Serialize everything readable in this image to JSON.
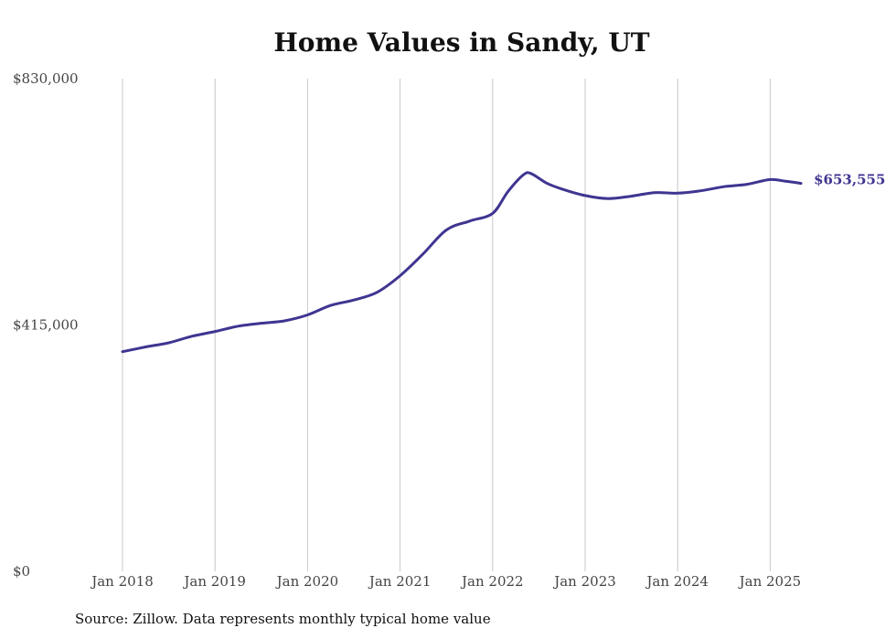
{
  "chart_data": {
    "type": "line",
    "title": "Home Values in Sandy, UT",
    "xlabel": "",
    "ylabel": "",
    "ylim": [
      0,
      830000
    ],
    "y_ticks": [
      "$0",
      "$415,000",
      "$830,000"
    ],
    "y_tick_values": [
      0,
      415000,
      830000
    ],
    "x_ticks": [
      "Jan 2018",
      "Jan 2019",
      "Jan 2020",
      "Jan 2021",
      "Jan 2022",
      "Jan 2023",
      "Jan 2024",
      "Jan 2025"
    ],
    "grid": "vertical",
    "line_color": "#3f3591",
    "end_label": "$653,555",
    "series": [
      {
        "values": [
          {
            "x": "2018-01",
            "y": 370000
          },
          {
            "x": "2018-04",
            "y": 378000
          },
          {
            "x": "2018-07",
            "y": 385000
          },
          {
            "x": "2018-10",
            "y": 396000
          },
          {
            "x": "2019-01",
            "y": 404000
          },
          {
            "x": "2019-04",
            "y": 413000
          },
          {
            "x": "2019-07",
            "y": 418000
          },
          {
            "x": "2019-10",
            "y": 422000
          },
          {
            "x": "2020-01",
            "y": 432000
          },
          {
            "x": "2020-04",
            "y": 448000
          },
          {
            "x": "2020-07",
            "y": 457000
          },
          {
            "x": "2020-10",
            "y": 470000
          },
          {
            "x": "2021-01",
            "y": 498000
          },
          {
            "x": "2021-04",
            "y": 535000
          },
          {
            "x": "2021-07",
            "y": 575000
          },
          {
            "x": "2021-10",
            "y": 590000
          },
          {
            "x": "2022-01",
            "y": 603000
          },
          {
            "x": "2022-03",
            "y": 640000
          },
          {
            "x": "2022-05",
            "y": 668000
          },
          {
            "x": "2022-06",
            "y": 670000
          },
          {
            "x": "2022-08",
            "y": 654000
          },
          {
            "x": "2022-10",
            "y": 644000
          },
          {
            "x": "2023-01",
            "y": 633000
          },
          {
            "x": "2023-04",
            "y": 628000
          },
          {
            "x": "2023-07",
            "y": 632000
          },
          {
            "x": "2023-10",
            "y": 638000
          },
          {
            "x": "2024-01",
            "y": 637000
          },
          {
            "x": "2024-04",
            "y": 641000
          },
          {
            "x": "2024-07",
            "y": 648000
          },
          {
            "x": "2024-10",
            "y": 652000
          },
          {
            "x": "2025-01",
            "y": 660000
          },
          {
            "x": "2025-03",
            "y": 657000
          },
          {
            "x": "2025-05",
            "y": 653555
          }
        ]
      }
    ]
  },
  "footer": {
    "source": "Source: Zillow. Data represents monthly typical home value"
  }
}
